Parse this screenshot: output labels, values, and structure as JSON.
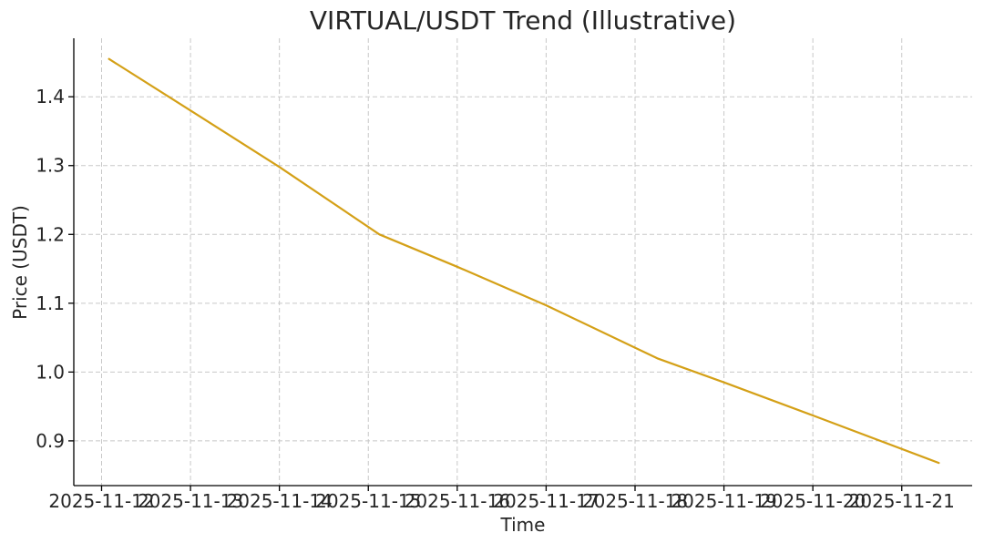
{
  "chart_data": {
    "type": "line",
    "title": "VIRTUAL/USDT Trend (Illustrative)",
    "xlabel": "Time",
    "ylabel": "Price (USDT)",
    "x_ticks": [
      "2025-11-12",
      "2025-11-13",
      "2025-11-14",
      "2025-11-15",
      "2025-11-16",
      "2025-11-17",
      "2025-11-18",
      "2025-11-19",
      "2025-11-20",
      "2025-11-21"
    ],
    "y_ticks": [
      0.9,
      1.0,
      1.1,
      1.2,
      1.3,
      1.4
    ],
    "y_tick_labels": [
      "0.9",
      "1.0",
      "1.1",
      "1.2",
      "1.3",
      "1.4"
    ],
    "xlim": [
      "2025-11-11T16:30",
      "2025-11-21T19:00"
    ],
    "ylim": [
      0.835,
      1.485
    ],
    "grid": true,
    "series": [
      {
        "color": "#d4a017",
        "x": [
          "2025-11-12T02:00",
          "2025-11-13T00:00",
          "2025-11-14T00:00",
          "2025-11-15T03:00",
          "2025-11-16T00:00",
          "2025-11-17T00:00",
          "2025-11-18T06:00",
          "2025-11-19T00:00",
          "2025-11-20T00:00",
          "2025-11-21T10:00"
        ],
        "y": [
          1.455,
          1.38,
          1.298,
          1.2,
          1.153,
          1.097,
          1.02,
          0.985,
          0.937,
          0.868
        ]
      }
    ]
  }
}
